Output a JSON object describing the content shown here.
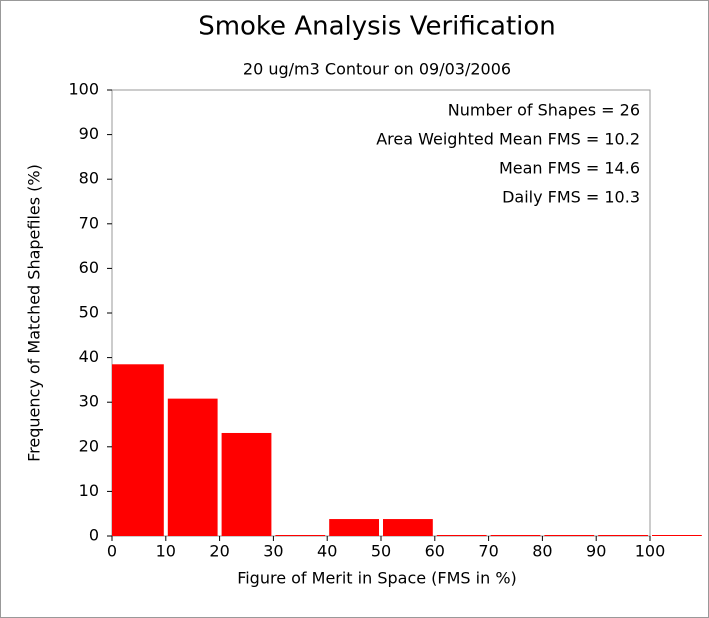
{
  "chart_data": {
    "type": "histogram",
    "title": "Smoke Analysis Verification",
    "subtitle": "20 ug/m3 Contour on 09/03/2006",
    "xlabel": "Figure of Merit in Space (FMS in %)",
    "ylabel": "Frequency of Matched Shapefiles (%)",
    "bins": [
      0,
      10,
      20,
      30,
      40,
      50,
      60,
      70,
      80,
      90,
      100,
      110
    ],
    "values": [
      38.5,
      30.8,
      23.1,
      0,
      3.8,
      3.8,
      0,
      0,
      0,
      0,
      0
    ],
    "color": "#ff0000",
    "xlim": [
      0,
      100
    ],
    "ylim": [
      0,
      100
    ],
    "xticks": [
      0,
      10,
      20,
      30,
      40,
      50,
      60,
      70,
      80,
      90,
      100
    ],
    "yticks": [
      0,
      10,
      20,
      30,
      40,
      50,
      60,
      70,
      80,
      90,
      100
    ],
    "annotations": [
      "Number of Shapes = 26",
      "Area Weighted Mean FMS = 10.2",
      "Mean FMS = 14.6",
      "Daily FMS = 10.3"
    ]
  }
}
